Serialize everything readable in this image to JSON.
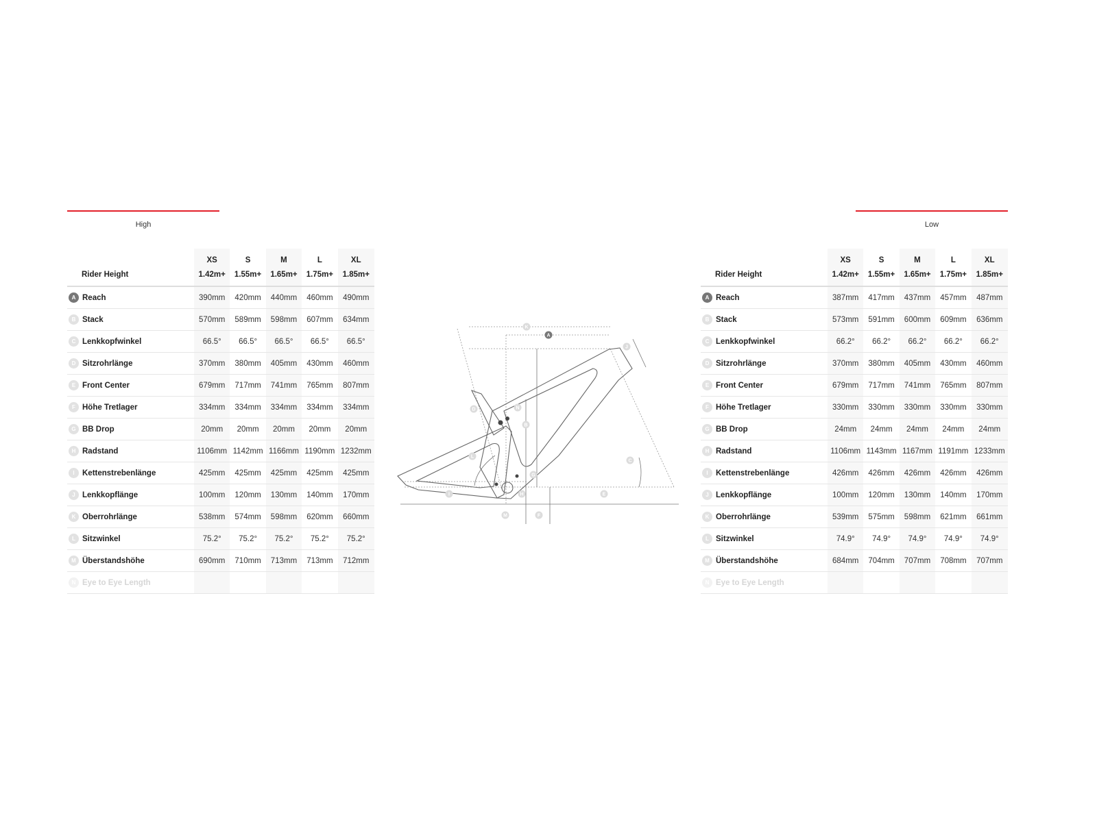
{
  "sizes": [
    "XS",
    "S",
    "M",
    "L",
    "XL"
  ],
  "rider_height_label": "Rider Height",
  "rider_heights": [
    "1.42m+",
    "1.55m+",
    "1.65m+",
    "1.75m+",
    "1.85m+"
  ],
  "rows": [
    {
      "letter": "A",
      "label": "Reach"
    },
    {
      "letter": "B",
      "label": "Stack"
    },
    {
      "letter": "C",
      "label": "Lenkkopfwinkel"
    },
    {
      "letter": "D",
      "label": "Sitzrohrlänge"
    },
    {
      "letter": "E",
      "label": "Front Center"
    },
    {
      "letter": "F",
      "label": "Höhe Tretlager"
    },
    {
      "letter": "G",
      "label": "BB Drop"
    },
    {
      "letter": "H",
      "label": "Radstand"
    },
    {
      "letter": "I",
      "label": "Kettenstrebenlänge"
    },
    {
      "letter": "J",
      "label": "Lenkkopflänge"
    },
    {
      "letter": "K",
      "label": "Oberrohrlänge"
    },
    {
      "letter": "L",
      "label": "Sitzwinkel"
    },
    {
      "letter": "M",
      "label": "Überstandshöhe"
    },
    {
      "letter": "N",
      "label": "Eye to Eye Length"
    }
  ],
  "high": {
    "title": "High",
    "values": [
      [
        "390mm",
        "420mm",
        "440mm",
        "460mm",
        "490mm"
      ],
      [
        "570mm",
        "589mm",
        "598mm",
        "607mm",
        "634mm"
      ],
      [
        "66.5°",
        "66.5°",
        "66.5°",
        "66.5°",
        "66.5°"
      ],
      [
        "370mm",
        "380mm",
        "405mm",
        "430mm",
        "460mm"
      ],
      [
        "679mm",
        "717mm",
        "741mm",
        "765mm",
        "807mm"
      ],
      [
        "334mm",
        "334mm",
        "334mm",
        "334mm",
        "334mm"
      ],
      [
        "20mm",
        "20mm",
        "20mm",
        "20mm",
        "20mm"
      ],
      [
        "1106mm",
        "1142mm",
        "1166mm",
        "1190mm",
        "1232mm"
      ],
      [
        "425mm",
        "425mm",
        "425mm",
        "425mm",
        "425mm"
      ],
      [
        "100mm",
        "120mm",
        "130mm",
        "140mm",
        "170mm"
      ],
      [
        "538mm",
        "574mm",
        "598mm",
        "620mm",
        "660mm"
      ],
      [
        "75.2°",
        "75.2°",
        "75.2°",
        "75.2°",
        "75.2°"
      ],
      [
        "690mm",
        "710mm",
        "713mm",
        "713mm",
        "712mm"
      ],
      [
        "",
        "",
        "",
        "",
        ""
      ]
    ]
  },
  "low": {
    "title": "Low",
    "values": [
      [
        "387mm",
        "417mm",
        "437mm",
        "457mm",
        "487mm"
      ],
      [
        "573mm",
        "591mm",
        "600mm",
        "609mm",
        "636mm"
      ],
      [
        "66.2°",
        "66.2°",
        "66.2°",
        "66.2°",
        "66.2°"
      ],
      [
        "370mm",
        "380mm",
        "405mm",
        "430mm",
        "460mm"
      ],
      [
        "679mm",
        "717mm",
        "741mm",
        "765mm",
        "807mm"
      ],
      [
        "330mm",
        "330mm",
        "330mm",
        "330mm",
        "330mm"
      ],
      [
        "24mm",
        "24mm",
        "24mm",
        "24mm",
        "24mm"
      ],
      [
        "1106mm",
        "1143mm",
        "1167mm",
        "1191mm",
        "1233mm"
      ],
      [
        "426mm",
        "426mm",
        "426mm",
        "426mm",
        "426mm"
      ],
      [
        "100mm",
        "120mm",
        "130mm",
        "140mm",
        "170mm"
      ],
      [
        "539mm",
        "575mm",
        "598mm",
        "621mm",
        "661mm"
      ],
      [
        "74.9°",
        "74.9°",
        "74.9°",
        "74.9°",
        "74.9°"
      ],
      [
        "684mm",
        "704mm",
        "707mm",
        "708mm",
        "707mm"
      ],
      [
        "",
        "",
        "",
        "",
        ""
      ]
    ]
  },
  "colors": {
    "accent": "#e3202a",
    "badge_active": "#777777",
    "badge_inactive": "#e2e2e2"
  },
  "diagram": {
    "labels": [
      "K",
      "A",
      "J",
      "B",
      "D",
      "N",
      "L",
      "C",
      "G",
      "I",
      "H",
      "E",
      "M",
      "F"
    ]
  }
}
